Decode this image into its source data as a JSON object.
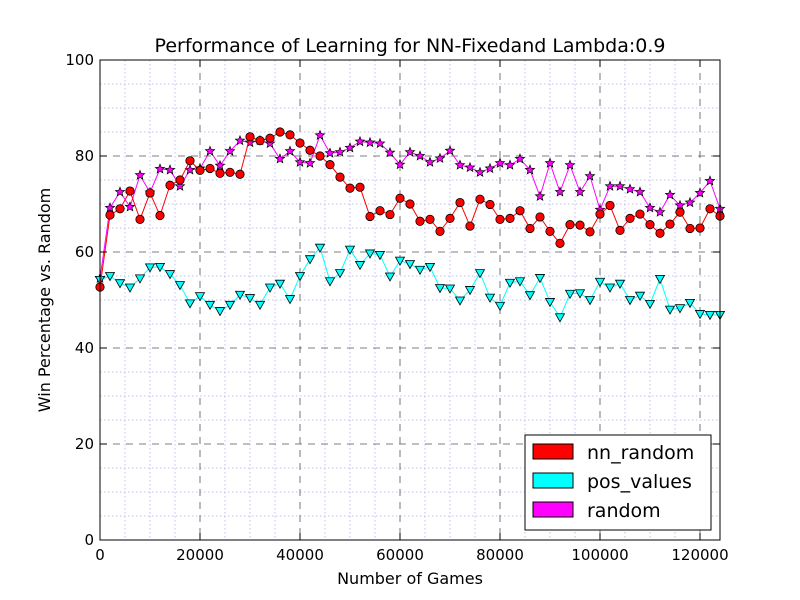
{
  "chart_data": {
    "type": "line",
    "title": "Performance of Learning for NN-Fixedand Lambda:0.9",
    "xlabel": "Number of Games",
    "ylabel": "Win Percentage vs. Random",
    "xlim": [
      0,
      124000
    ],
    "ylim": [
      0,
      100
    ],
    "x_ticks": [
      0,
      20000,
      40000,
      60000,
      80000,
      100000,
      120000
    ],
    "y_ticks": [
      0,
      20,
      40,
      60,
      80,
      100
    ],
    "grid": true,
    "legend_position": "lower-right",
    "x": [
      0,
      2000,
      4000,
      6000,
      8000,
      10000,
      12000,
      14000,
      16000,
      18000,
      20000,
      22000,
      24000,
      26000,
      28000,
      30000,
      32000,
      34000,
      36000,
      38000,
      40000,
      42000,
      44000,
      46000,
      48000,
      50000,
      52000,
      54000,
      56000,
      58000,
      60000,
      62000,
      64000,
      66000,
      68000,
      70000,
      72000,
      74000,
      76000,
      78000,
      80000,
      82000,
      84000,
      86000,
      88000,
      90000,
      92000,
      94000,
      96000,
      98000,
      100000,
      102000,
      104000,
      106000,
      108000,
      110000,
      112000,
      114000,
      116000,
      118000,
      120000,
      122000,
      124000
    ],
    "series": [
      {
        "name": "nn_random",
        "color": "#ff0000",
        "marker": "circle",
        "values": [
          52.7,
          67.7,
          69.0,
          72.7,
          66.8,
          72.3,
          67.6,
          73.9,
          75.0,
          79.0,
          77.0,
          77.4,
          76.4,
          76.6,
          76.2,
          84.0,
          83.2,
          83.7,
          85.0,
          84.4,
          82.7,
          81.2,
          80.0,
          78.2,
          75.6,
          73.3,
          73.5,
          67.4,
          68.6,
          67.8,
          71.2,
          70.0,
          66.4,
          66.8,
          64.3,
          67.0,
          70.3,
          65.4,
          71.0,
          69.9,
          66.8,
          67.0,
          68.6,
          64.9,
          67.3,
          64.3,
          61.8,
          65.7,
          65.6,
          64.2,
          67.9,
          69.7,
          64.5,
          67.0,
          67.9,
          65.7,
          63.9,
          65.8,
          68.3,
          64.9,
          65.0,
          69.0,
          67.5
        ]
      },
      {
        "name": "pos_values",
        "color": "#00ffff",
        "marker": "triangle-down",
        "values": [
          54.2,
          55.0,
          53.5,
          52.6,
          54.5,
          56.8,
          56.9,
          55.4,
          53.1,
          49.3,
          50.8,
          49.0,
          47.7,
          49.0,
          51.1,
          50.4,
          49.0,
          52.6,
          53.4,
          50.2,
          55.0,
          58.5,
          60.9,
          53.9,
          55.6,
          60.5,
          57.3,
          59.7,
          59.4,
          54.9,
          58.2,
          57.5,
          56.3,
          56.9,
          52.5,
          52.4,
          49.9,
          52.1,
          55.6,
          50.5,
          48.8,
          53.6,
          53.9,
          51.0,
          54.6,
          49.6,
          46.4,
          51.3,
          51.4,
          50.0,
          53.8,
          52.6,
          53.4,
          50.0,
          50.9,
          49.2,
          54.4,
          48.0,
          48.3,
          49.4,
          47.1,
          46.9,
          46.9
        ]
      },
      {
        "name": "random",
        "color": "#ff00ff",
        "marker": "star",
        "values": [
          54.5,
          69.2,
          72.5,
          69.4,
          76.0,
          72.4,
          77.3,
          77.1,
          73.7,
          77.1,
          77.4,
          81.0,
          78.0,
          81.0,
          83.2,
          82.8,
          83.2,
          82.6,
          79.4,
          81.0,
          78.7,
          78.5,
          84.3,
          80.6,
          80.8,
          81.7,
          83.0,
          82.8,
          82.6,
          80.7,
          78.2,
          80.8,
          80.0,
          78.7,
          79.5,
          81.1,
          78.1,
          77.6,
          76.6,
          77.4,
          78.5,
          78.1,
          79.4,
          77.1,
          71.6,
          78.5,
          72.5,
          78.1,
          72.5,
          75.8,
          68.8,
          73.7,
          73.7,
          73.1,
          72.5,
          69.2,
          68.3,
          71.9,
          69.7,
          70.3,
          72.3,
          74.8,
          69.0
        ]
      }
    ]
  }
}
